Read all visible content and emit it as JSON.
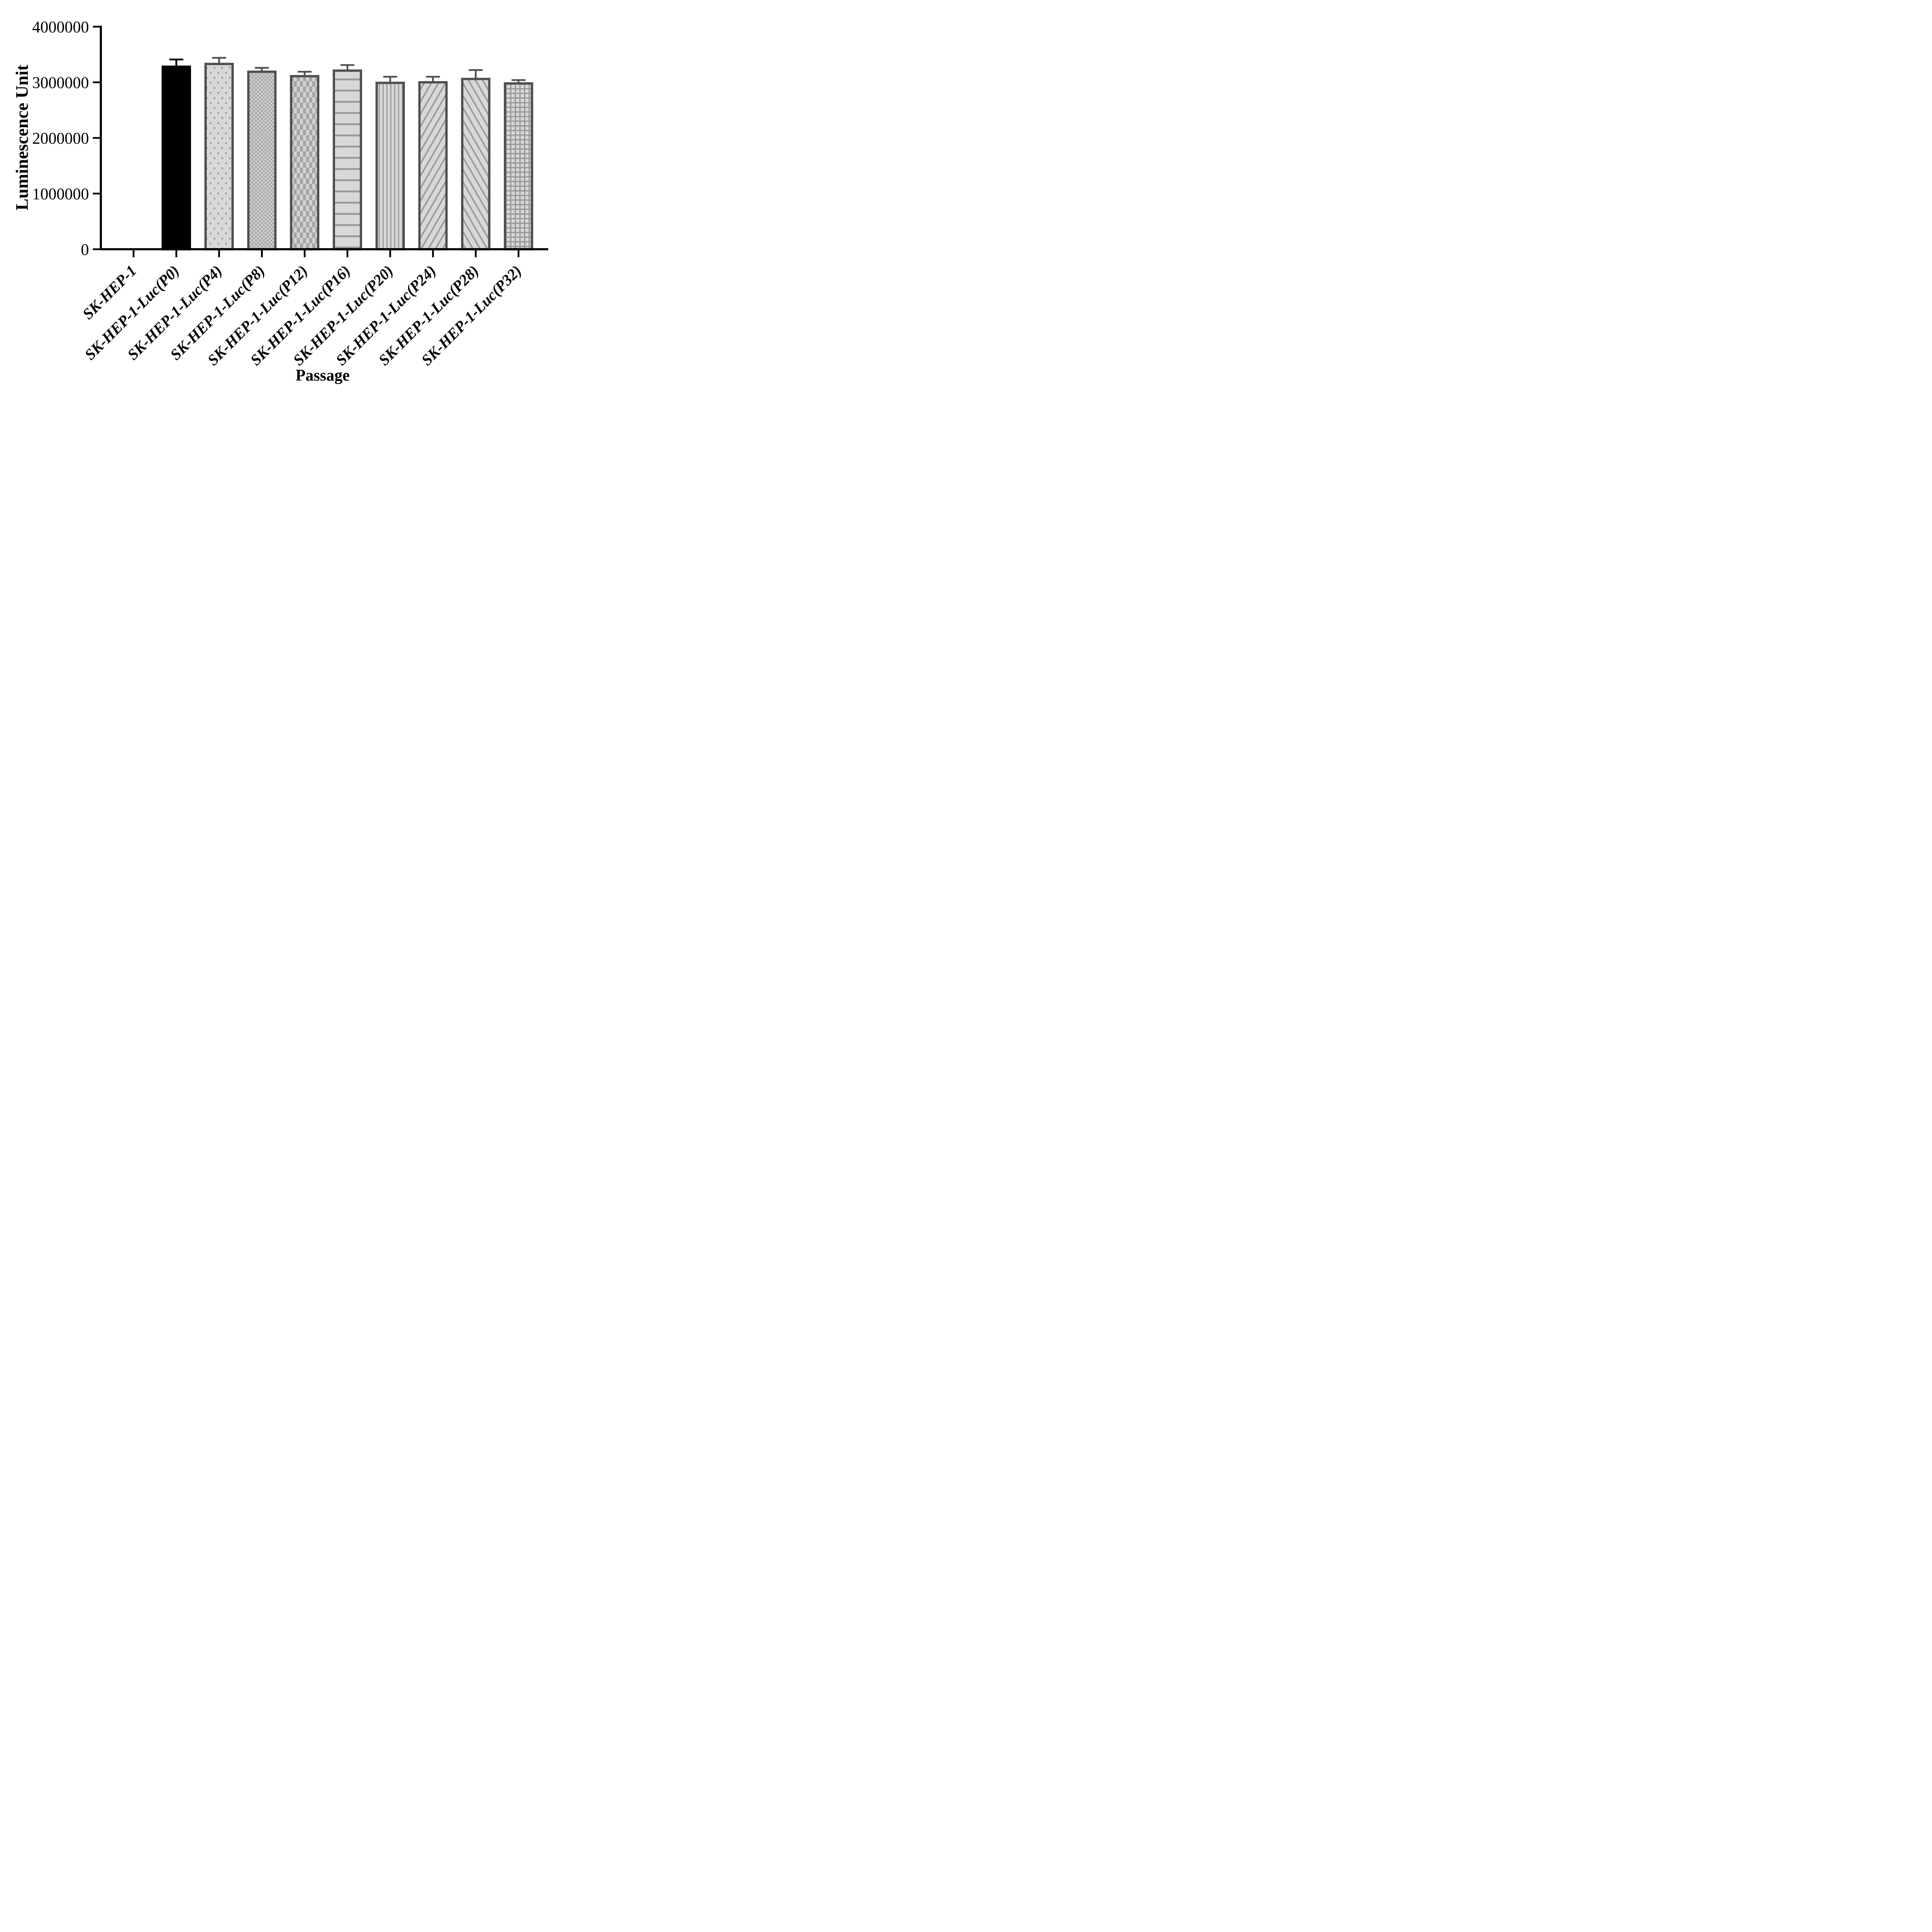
{
  "chart_data": {
    "type": "bar",
    "title": "",
    "xlabel": "Passage",
    "ylabel": "Luminescence Unit",
    "ylim": [
      0,
      4000000
    ],
    "ytick_values": [
      0,
      1000000,
      2000000,
      3000000,
      4000000
    ],
    "ytick_labels": [
      "0",
      "1000000",
      "2000000",
      "3000000",
      "4000000"
    ],
    "grid": false,
    "legend_position": "none",
    "categories": [
      "SK-HEP-1",
      "SK-HEP-1-Luc(P0)",
      "SK-HEP-1-Luc(P4)",
      "SK-HEP-1-Luc(P8)",
      "SK-HEP-1-Luc(P12)",
      "SK-HEP-1-Luc(P16)",
      "SK-HEP-1-Luc(P20)",
      "SK-HEP-1-Luc(P24)",
      "SK-HEP-1-Luc(P28)",
      "SK-HEP-1-Luc(P32)"
    ],
    "values": [
      0,
      3280000,
      3330000,
      3190000,
      3110000,
      3210000,
      2990000,
      3000000,
      3060000,
      2980000
    ],
    "errors_plus": [
      0,
      130000,
      110000,
      70000,
      80000,
      100000,
      110000,
      100000,
      160000,
      60000
    ],
    "bar_patterns": [
      "none",
      "solid-black",
      "dots",
      "checker-small",
      "checker-large",
      "hlines",
      "vlines",
      "diag-up",
      "diag-down",
      "grid"
    ],
    "colors": {
      "axis": "#000000",
      "text": "#000000",
      "solid_bar": "#000000",
      "bar_border": "#4f4f4f",
      "bar_fill_base": "#d8d8d8",
      "pattern_mark": "#9b9b9b",
      "checker_dark": "#a5a5a9",
      "checker_light": "#d2d2d2",
      "error_bar_default": "#4f4f4f",
      "error_bar_first": "#000000"
    }
  }
}
